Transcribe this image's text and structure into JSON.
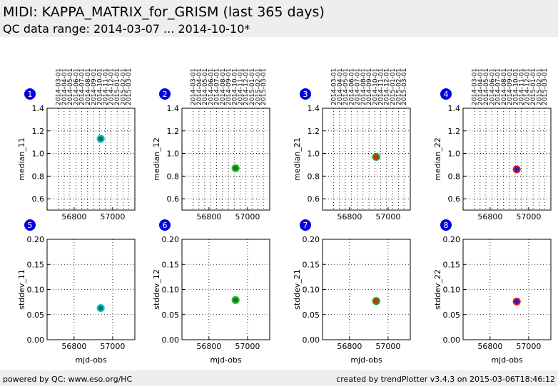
{
  "header": {
    "title": "MIDI: KAPPA_MATRIX_for_GRISM (last 365 days)",
    "subtitle": "QC data range: 2014-03-07 ... 2014-10-10*"
  },
  "footer": {
    "left": "powered by QC: www.eso.org/HC",
    "right": "created by trendPlotter v3.4.3 on 2015-03-06T18:46:12"
  },
  "chart_data": [
    {
      "type": "scatter",
      "label": "1",
      "ylabel": "median_11",
      "x": [
        56938
      ],
      "values": [
        1.13
      ],
      "color": "#0b6b6b",
      "edgecolor": "#00c8c8",
      "xlim": [
        56660,
        57115
      ],
      "xticks": [
        56800,
        57000
      ],
      "top_ticks": [
        {
          "value": 56717,
          "label": "2014-03-01"
        },
        {
          "value": 56748,
          "label": "2014-04-01"
        },
        {
          "value": 56778,
          "label": "2014-05-01"
        },
        {
          "value": 56809,
          "label": "2014-06-01"
        },
        {
          "value": 56839,
          "label": "2014-07-01"
        },
        {
          "value": 56870,
          "label": "2014-08-01"
        },
        {
          "value": 56901,
          "label": "2014-09-01"
        },
        {
          "value": 56931,
          "label": "2014-10-01"
        },
        {
          "value": 56962,
          "label": "2014-11-01"
        },
        {
          "value": 56992,
          "label": "2014-12-01"
        },
        {
          "value": 57023,
          "label": "2015-01-01"
        },
        {
          "value": 57054,
          "label": "2015-02-01"
        },
        {
          "value": 57082,
          "label": "2015-03-01"
        }
      ],
      "ylim": [
        0.5,
        1.4
      ],
      "yticks": [
        0.6,
        0.8,
        {
          "value": 1,
          "label": "1.0"
        },
        1.2,
        1.4
      ],
      "grid": true
    },
    {
      "type": "scatter",
      "label": "2",
      "ylabel": "median_12",
      "x": [
        56938
      ],
      "values": [
        0.87
      ],
      "color": "#1a7a1a",
      "edgecolor": "#2db52d",
      "xlim": [
        56660,
        57115
      ],
      "xticks": [
        56800,
        57000
      ],
      "top_ticks": [
        {
          "value": 56717,
          "label": "2014-03-01"
        },
        {
          "value": 56748,
          "label": "2014-04-01"
        },
        {
          "value": 56778,
          "label": "2014-05-01"
        },
        {
          "value": 56809,
          "label": "2014-06-01"
        },
        {
          "value": 56839,
          "label": "2014-07-01"
        },
        {
          "value": 56870,
          "label": "2014-08-01"
        },
        {
          "value": 56901,
          "label": "2014-09-01"
        },
        {
          "value": 56931,
          "label": "2014-10-01"
        },
        {
          "value": 56962,
          "label": "2014-11-01"
        },
        {
          "value": 56992,
          "label": "2014-12-01"
        },
        {
          "value": 57023,
          "label": "2015-01-01"
        },
        {
          "value": 57054,
          "label": "2015-02-01"
        },
        {
          "value": 57082,
          "label": "2015-03-01"
        }
      ],
      "ylim": [
        0.5,
        1.4
      ],
      "yticks": [
        0.6,
        0.8,
        {
          "value": 1,
          "label": "1.0"
        },
        1.2,
        1.4
      ],
      "grid": true
    },
    {
      "type": "scatter",
      "label": "3",
      "ylabel": "median_21",
      "x": [
        56938
      ],
      "values": [
        0.97
      ],
      "color": "#e02020",
      "edgecolor": "#22a022",
      "xlim": [
        56660,
        57115
      ],
      "xticks": [
        56800,
        57000
      ],
      "top_ticks": [
        {
          "value": 56717,
          "label": "2014-03-01"
        },
        {
          "value": 56748,
          "label": "2014-04-01"
        },
        {
          "value": 56778,
          "label": "2014-05-01"
        },
        {
          "value": 56809,
          "label": "2014-06-01"
        },
        {
          "value": 56839,
          "label": "2014-07-01"
        },
        {
          "value": 56870,
          "label": "2014-08-01"
        },
        {
          "value": 56901,
          "label": "2014-09-01"
        },
        {
          "value": 56931,
          "label": "2014-10-01"
        },
        {
          "value": 56962,
          "label": "2014-11-01"
        },
        {
          "value": 56992,
          "label": "2014-12-01"
        },
        {
          "value": 57023,
          "label": "2015-01-01"
        },
        {
          "value": 57054,
          "label": "2015-02-01"
        },
        {
          "value": 57082,
          "label": "2015-03-01"
        }
      ],
      "ylim": [
        0.5,
        1.4
      ],
      "yticks": [
        0.6,
        0.8,
        {
          "value": 1,
          "label": "1.0"
        },
        1.2,
        1.4
      ],
      "grid": true
    },
    {
      "type": "scatter",
      "label": "4",
      "ylabel": "median_22",
      "x": [
        56938
      ],
      "values": [
        0.86
      ],
      "color": "#2020c0",
      "edgecolor": "#e02020",
      "xlim": [
        56660,
        57115
      ],
      "xticks": [
        56800,
        57000
      ],
      "top_ticks": [
        {
          "value": 56717,
          "label": "2014-03-01"
        },
        {
          "value": 56748,
          "label": "2014-04-01"
        },
        {
          "value": 56778,
          "label": "2014-05-01"
        },
        {
          "value": 56809,
          "label": "2014-06-01"
        },
        {
          "value": 56839,
          "label": "2014-07-01"
        },
        {
          "value": 56870,
          "label": "2014-08-01"
        },
        {
          "value": 56901,
          "label": "2014-09-01"
        },
        {
          "value": 56931,
          "label": "2014-10-01"
        },
        {
          "value": 56962,
          "label": "2014-11-01"
        },
        {
          "value": 56992,
          "label": "2014-12-01"
        },
        {
          "value": 57023,
          "label": "2015-01-01"
        },
        {
          "value": 57054,
          "label": "2015-02-01"
        },
        {
          "value": 57082,
          "label": "2015-03-01"
        }
      ],
      "ylim": [
        0.5,
        1.4
      ],
      "yticks": [
        0.6,
        0.8,
        {
          "value": 1,
          "label": "1.0"
        },
        1.2,
        1.4
      ],
      "grid": true
    },
    {
      "type": "scatter",
      "label": "5",
      "ylabel": "stddev_11",
      "xlabel": "mjd-obs",
      "x": [
        56938
      ],
      "values": [
        0.063
      ],
      "color": "#0b6b6b",
      "edgecolor": "#00c8c8",
      "xlim": [
        56660,
        57115
      ],
      "xticks": [
        56800,
        57000
      ],
      "ylim": [
        0,
        0.2
      ],
      "yticks": [
        {
          "value": 0,
          "label": "0.00"
        },
        0.05,
        {
          "value": 0.1,
          "label": "0.10"
        },
        0.15,
        {
          "value": 0.2,
          "label": "0.20"
        }
      ],
      "grid": true
    },
    {
      "type": "scatter",
      "label": "6",
      "ylabel": "stddev_12",
      "xlabel": "mjd-obs",
      "x": [
        56938
      ],
      "values": [
        0.079
      ],
      "color": "#1a7a1a",
      "edgecolor": "#2db52d",
      "xlim": [
        56660,
        57115
      ],
      "xticks": [
        56800,
        57000
      ],
      "ylim": [
        0,
        0.2
      ],
      "yticks": [
        {
          "value": 0,
          "label": "0.00"
        },
        0.05,
        {
          "value": 0.1,
          "label": "0.10"
        },
        0.15,
        {
          "value": 0.2,
          "label": "0.20"
        }
      ],
      "grid": true
    },
    {
      "type": "scatter",
      "label": "7",
      "ylabel": "stddev_21",
      "xlabel": "mjd-obs",
      "x": [
        56938
      ],
      "values": [
        0.077
      ],
      "color": "#e02020",
      "edgecolor": "#22a022",
      "xlim": [
        56660,
        57115
      ],
      "xticks": [
        56800,
        57000
      ],
      "ylim": [
        0,
        0.2
      ],
      "yticks": [
        {
          "value": 0,
          "label": "0.00"
        },
        0.05,
        {
          "value": 0.1,
          "label": "0.10"
        },
        0.15,
        {
          "value": 0.2,
          "label": "0.20"
        }
      ],
      "grid": true
    },
    {
      "type": "scatter",
      "label": "8",
      "ylabel": "stddev_22",
      "xlabel": "mjd-obs",
      "x": [
        56938
      ],
      "values": [
        0.076
      ],
      "color": "#2020c0",
      "edgecolor": "#e02020",
      "xlim": [
        56660,
        57115
      ],
      "xticks": [
        56800,
        57000
      ],
      "ylim": [
        0,
        0.2
      ],
      "yticks": [
        {
          "value": 0,
          "label": "0.00"
        },
        0.05,
        {
          "value": 0.1,
          "label": "0.10"
        },
        0.15,
        {
          "value": 0.2,
          "label": "0.20"
        }
      ],
      "grid": true
    }
  ]
}
